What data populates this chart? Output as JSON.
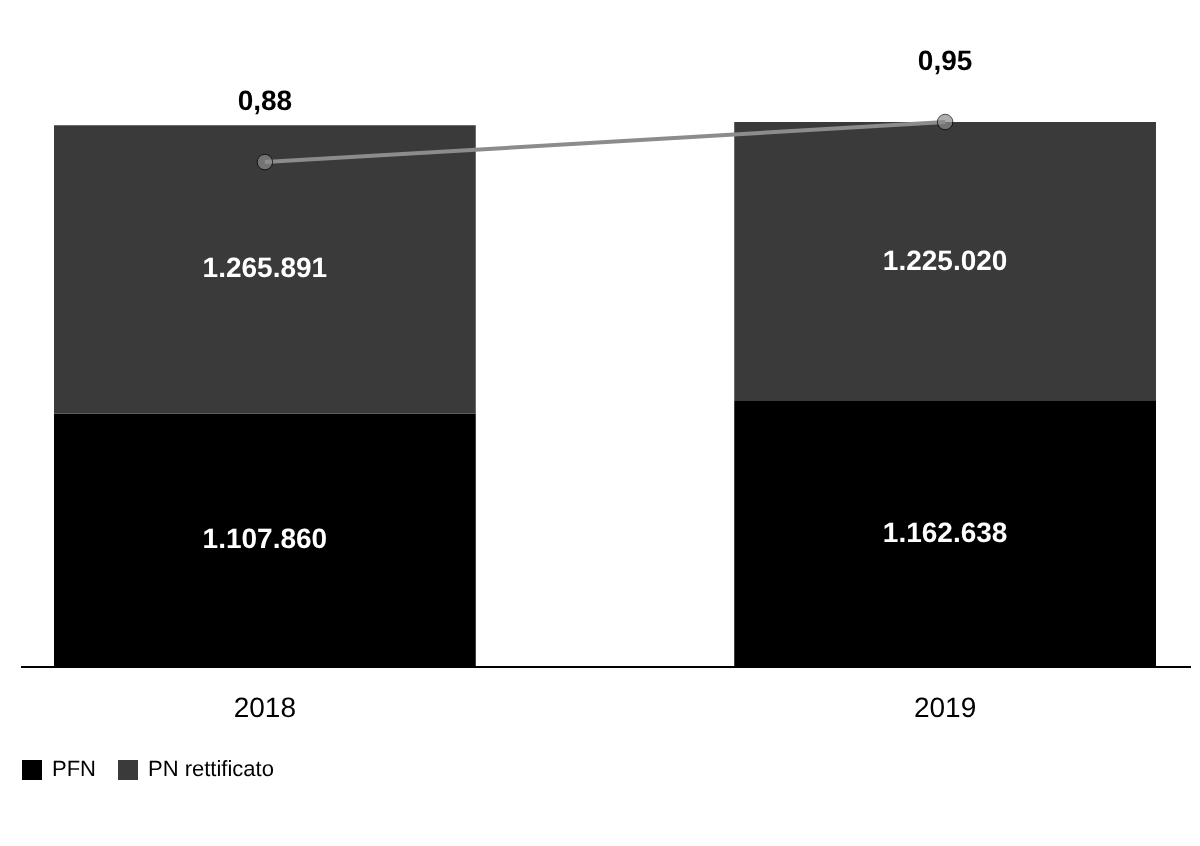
{
  "chart_data": {
    "type": "bar",
    "stacked": true,
    "categories": [
      "2018",
      "2019"
    ],
    "series": [
      {
        "name": "PFN",
        "color": "#000000",
        "values": [
          1107860,
          1162638
        ],
        "value_labels": [
          "1.107.860",
          "1.162.638"
        ]
      },
      {
        "name": "PN rettificato",
        "color": "#3a3a3a",
        "values": [
          1265891,
          1225020
        ],
        "value_labels": [
          "1.265.891",
          "1.225.020"
        ]
      },
      {
        "type": "line",
        "axis": "y2",
        "color": "#8c8c8c",
        "values": [
          0.88,
          0.95
        ],
        "value_labels": [
          "0,88",
          "0,95"
        ]
      }
    ],
    "tick_labels": "x",
    "grid": false,
    "legend": "bottom",
    "marker": "circle",
    "line_style": "solid"
  }
}
